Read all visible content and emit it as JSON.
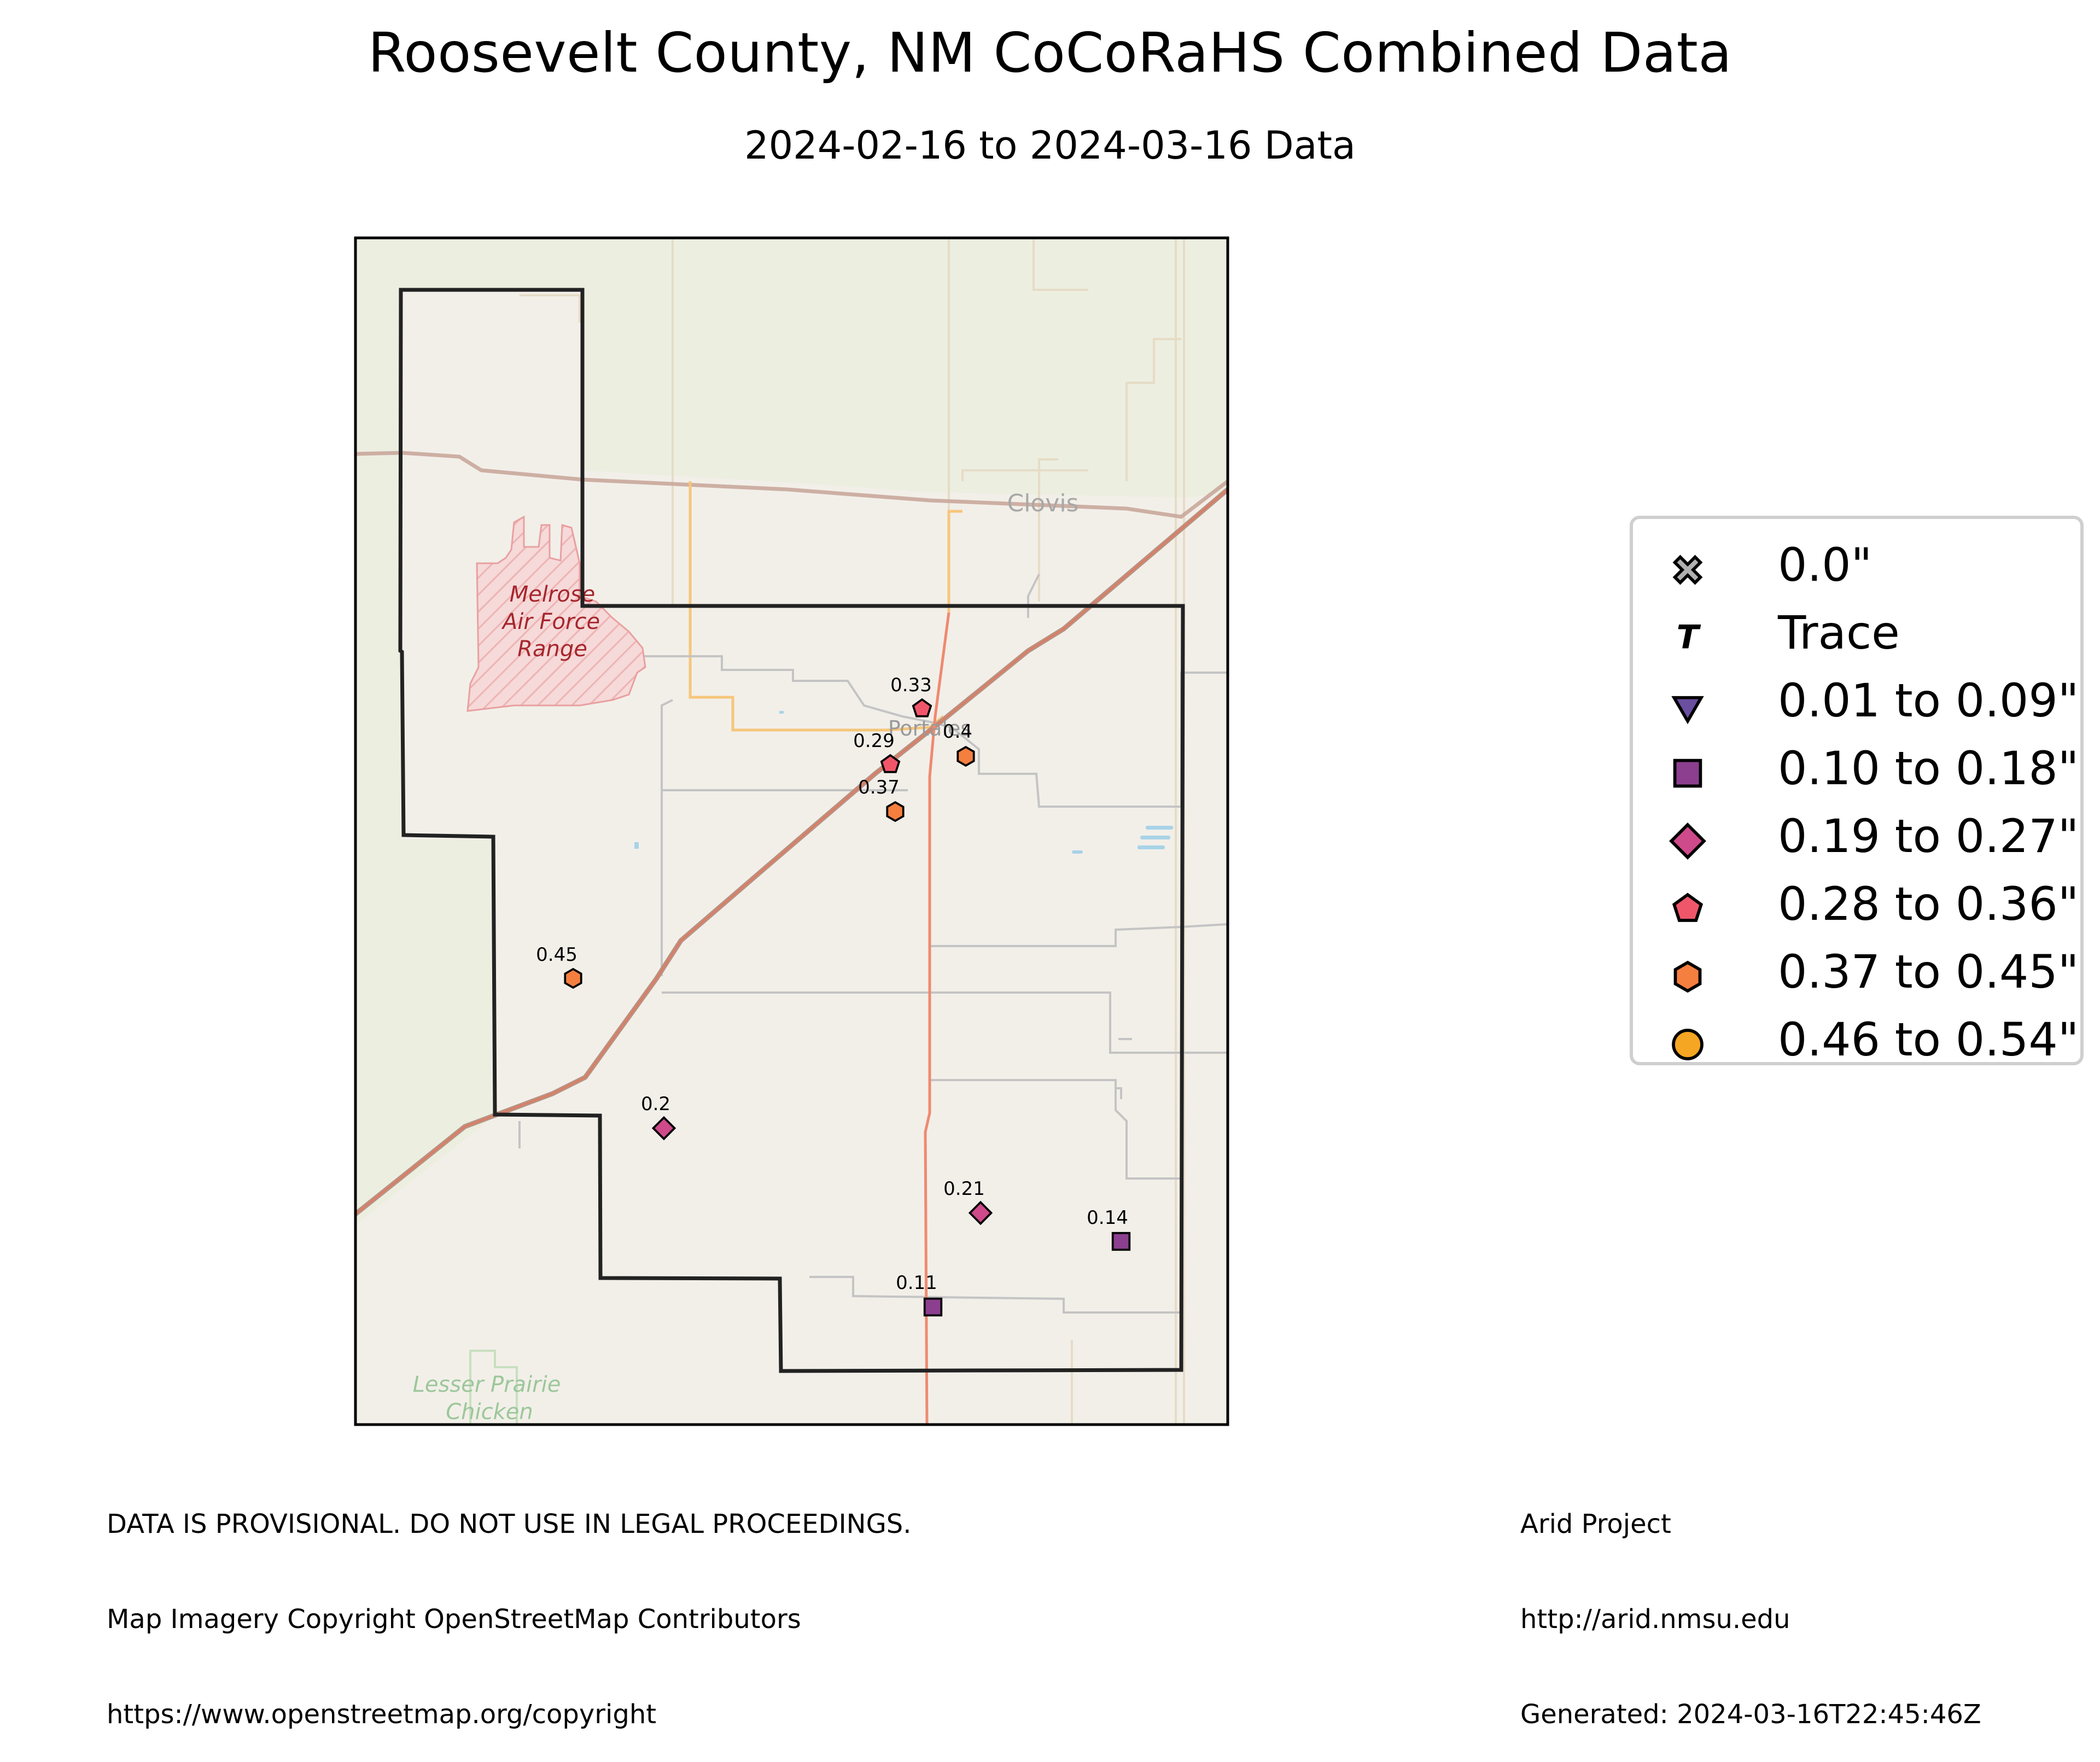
{
  "title": "Roosevelt County, NM CoCoRaHS Combined Data",
  "subtitle": "2024-02-16 to 2024-03-16 Data",
  "map_labels": {
    "clovis": "Clovis",
    "portales": "Portales",
    "melrose_line1": "Melrose",
    "melrose_line2": "Air Force",
    "melrose_line3": "Range",
    "lesser_line1": "Lesser Prairie",
    "lesser_line2": "Chicken"
  },
  "stations": [
    {
      "value": "0.33",
      "category": "0.28 to 0.36\""
    },
    {
      "value": "0.29",
      "category": "0.28 to 0.36\""
    },
    {
      "value": "0.4",
      "category": "0.37 to 0.45\""
    },
    {
      "value": "0.37",
      "category": "0.37 to 0.45\""
    },
    {
      "value": "0.45",
      "category": "0.37 to 0.45\""
    },
    {
      "value": "0.2",
      "category": "0.19 to 0.27\""
    },
    {
      "value": "0.21",
      "category": "0.19 to 0.27\""
    },
    {
      "value": "0.14",
      "category": "0.10 to 0.18\""
    },
    {
      "value": "0.11",
      "category": "0.10 to 0.18\""
    }
  ],
  "legend": {
    "items": [
      {
        "label": "0.0\"",
        "symbol": "x-mark",
        "color": "#b0b0b0"
      },
      {
        "label": "Trace",
        "symbol": "T",
        "color": "#000000"
      },
      {
        "label": "0.01 to 0.09\"",
        "symbol": "triangle-down",
        "color": "#6a4fa0"
      },
      {
        "label": "0.10 to 0.18\"",
        "symbol": "square",
        "color": "#8c3f8f"
      },
      {
        "label": "0.19 to 0.27\"",
        "symbol": "diamond",
        "color": "#cf4a8a"
      },
      {
        "label": "0.28 to 0.36\"",
        "symbol": "pentagon",
        "color": "#f0566a"
      },
      {
        "label": "0.37 to 0.45\"",
        "symbol": "hexagon",
        "color": "#f57f3f"
      },
      {
        "label": "0.46 to 0.54\"",
        "symbol": "circle",
        "color": "#f5a623"
      }
    ]
  },
  "footer_left": {
    "line1": "DATA IS PROVISIONAL. DO NOT USE IN LEGAL PROCEEDINGS.",
    "line2": "Map Imagery Copyright OpenStreetMap Contributors",
    "line3": "https://www.openstreetmap.org/copyright"
  },
  "footer_right": {
    "line1": "Arid Project",
    "line2": "http://arid.nmsu.edu",
    "line3": "Generated: 2024-03-16T22:45:46Z"
  }
}
